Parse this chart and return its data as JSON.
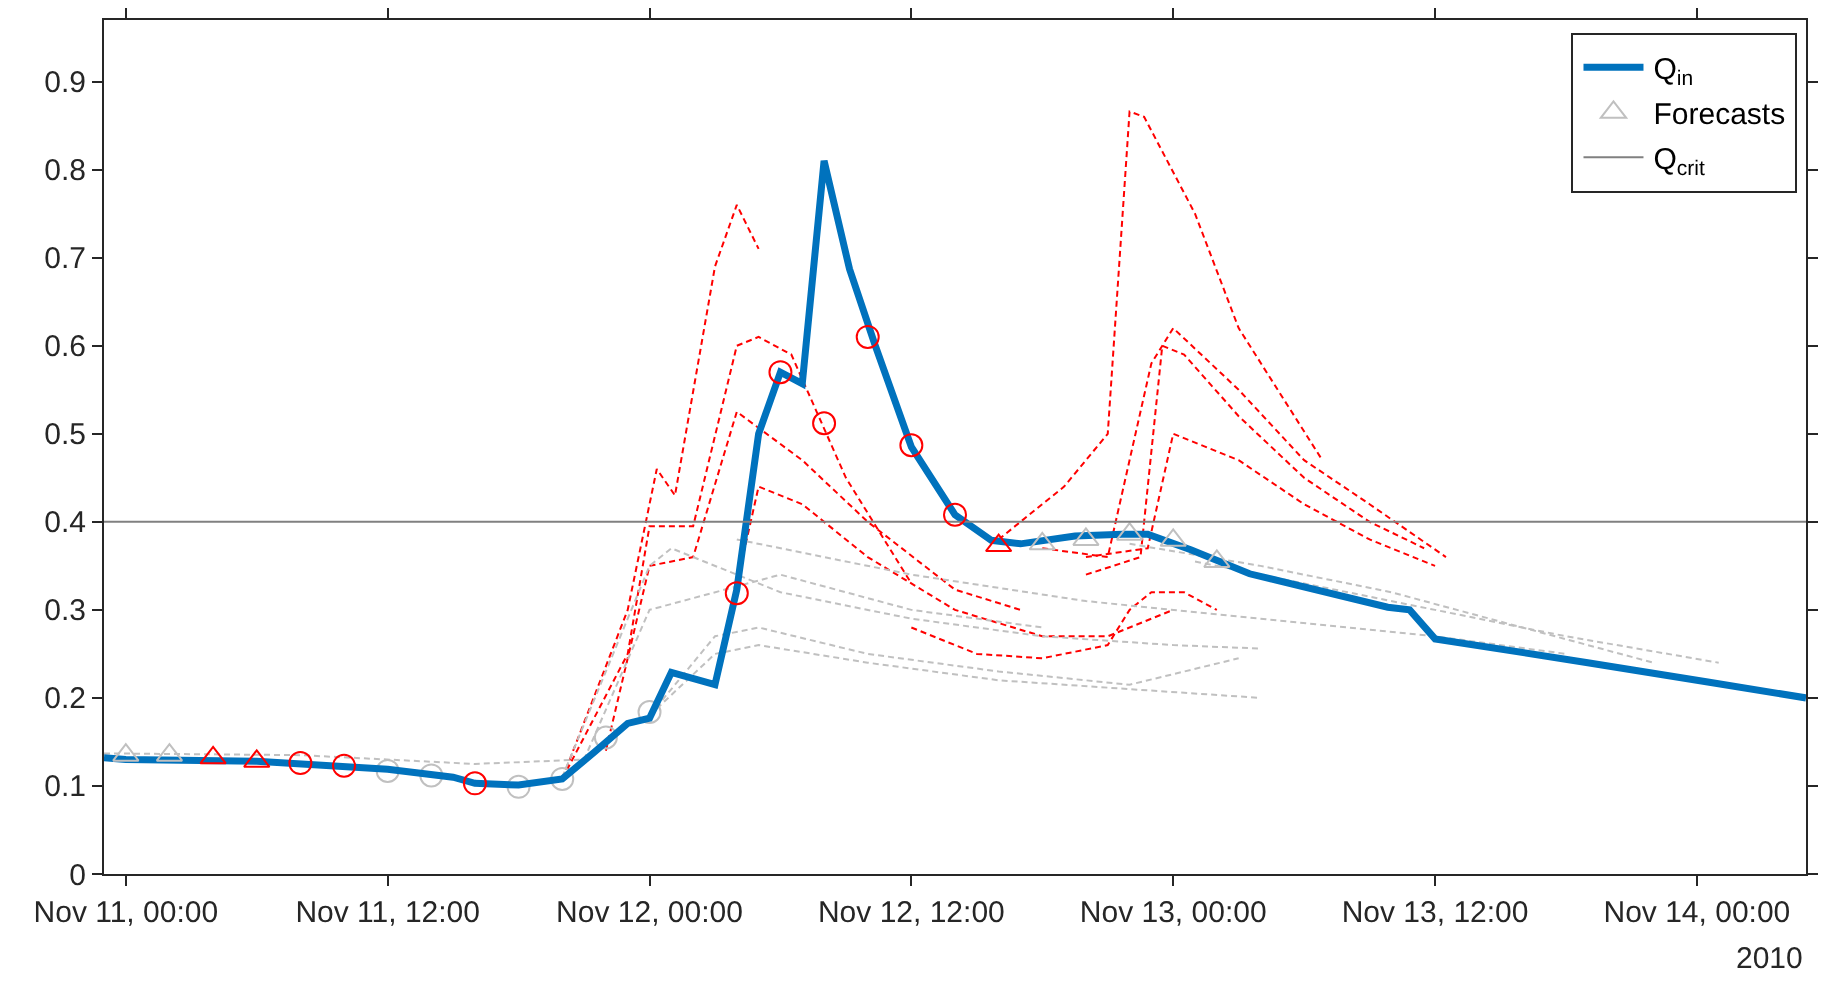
{
  "chart_data": {
    "type": "line",
    "xlim": [
      "2010-11-10T23:00",
      "2010-11-14T05:00"
    ],
    "ylim": [
      0,
      0.97
    ],
    "yticks": [
      0,
      0.1,
      0.2,
      0.3,
      0.4,
      0.5,
      0.6,
      0.7,
      0.8,
      0.9
    ],
    "xticks": [
      {
        "value": "2010-11-11T00:00",
        "label": "Nov 11, 00:00"
      },
      {
        "value": "2010-11-11T12:00",
        "label": "Nov 11, 12:00"
      },
      {
        "value": "2010-11-12T00:00",
        "label": "Nov 12, 00:00"
      },
      {
        "value": "2010-11-12T12:00",
        "label": "Nov 12, 12:00"
      },
      {
        "value": "2010-11-13T00:00",
        "label": "Nov 13, 00:00"
      },
      {
        "value": "2010-11-13T12:00",
        "label": "Nov 13, 12:00"
      },
      {
        "value": "2010-11-14T00:00",
        "label": "Nov 14, 00:00"
      }
    ],
    "annotations": [
      "2010"
    ],
    "legend": "top right",
    "series": [
      {
        "color": "#ff0000",
        "line_style": "dashed",
        "x": [
          "2010-11-11T20:00",
          "2010-11-11T23:00",
          "2010-11-12T00:20",
          "2010-11-12T01:10",
          "2010-11-12T03:00",
          "2010-11-12T04:00",
          "2010-11-12T05:00"
        ],
        "values": [
          0.108,
          0.3,
          0.46,
          0.43,
          0.69,
          0.76,
          0.71
        ]
      },
      {
        "color": "#ff0000",
        "line_style": "dashed",
        "x": [
          "2010-11-11T20:00",
          "2010-11-11T23:00",
          "2010-11-12T00:00",
          "2010-11-12T02:00",
          "2010-11-12T04:00",
          "2010-11-12T05:00",
          "2010-11-12T06:30",
          "2010-11-12T09:00",
          "2010-11-12T12:00"
        ],
        "values": [
          0.108,
          0.25,
          0.395,
          0.395,
          0.6,
          0.61,
          0.59,
          0.45,
          0.33
        ]
      },
      {
        "color": "#ff0000",
        "line_style": "dashed",
        "x": [
          "2010-11-11T22:00",
          "2010-11-12T00:00",
          "2010-11-12T02:00",
          "2010-11-12T04:00",
          "2010-11-12T07:00",
          "2010-11-12T10:00",
          "2010-11-12T14:00",
          "2010-11-12T17:00"
        ],
        "values": [
          0.14,
          0.35,
          0.36,
          0.525,
          0.47,
          0.4,
          0.323,
          0.3
        ]
      },
      {
        "color": "#ff0000",
        "line_style": "dashed",
        "x": [
          "2010-11-12T04:00",
          "2010-11-12T05:00",
          "2010-11-12T07:00",
          "2010-11-12T10:00",
          "2010-11-12T14:00",
          "2010-11-12T18:00",
          "2010-11-12T21:00",
          "2010-11-13T00:00"
        ],
        "values": [
          0.33,
          0.44,
          0.42,
          0.36,
          0.3,
          0.27,
          0.27,
          0.3
        ]
      },
      {
        "color": "#ff0000",
        "line_style": "dashed",
        "x": [
          "2010-11-12T12:00",
          "2010-11-12T15:00",
          "2010-11-12T18:00",
          "2010-11-12T21:00",
          "2010-11-12T22:00",
          "2010-11-12T23:00",
          "2010-11-13T00:30",
          "2010-11-13T02:00"
        ],
        "values": [
          0.28,
          0.25,
          0.245,
          0.26,
          0.3,
          0.32,
          0.32,
          0.3
        ]
      },
      {
        "color": "#ff0000",
        "line_style": "dashed",
        "x": [
          "2010-11-12T16:00",
          "2010-11-12T19:00",
          "2010-11-12T21:00",
          "2010-11-12T22:00",
          "2010-11-12T22:40",
          "2010-11-13T01:00",
          "2010-11-13T03:00",
          "2010-11-13T06:50"
        ],
        "values": [
          0.38,
          0.44,
          0.5,
          0.866,
          0.86,
          0.75,
          0.62,
          0.47
        ]
      },
      {
        "color": "#ff0000",
        "line_style": "dashed",
        "x": [
          "2010-11-12T18:00",
          "2010-11-12T21:00",
          "2010-11-12T23:00",
          "2010-11-13T00:00",
          "2010-11-13T03:00",
          "2010-11-13T06:00",
          "2010-11-13T09:00",
          "2010-11-13T12:30"
        ],
        "values": [
          0.37,
          0.36,
          0.58,
          0.62,
          0.55,
          0.47,
          0.42,
          0.36
        ]
      },
      {
        "color": "#ff0000",
        "line_style": "dashed",
        "x": [
          "2010-11-12T20:00",
          "2010-11-12T22:30",
          "2010-11-12T23:30",
          "2010-11-13T00:30",
          "2010-11-13T03:00",
          "2010-11-13T06:00",
          "2010-11-13T09:00",
          "2010-11-13T11:30"
        ],
        "values": [
          0.34,
          0.36,
          0.6,
          0.59,
          0.52,
          0.45,
          0.4,
          0.37
        ]
      },
      {
        "color": "#ff0000",
        "line_style": "dashed",
        "x": [
          "2010-11-12T20:00",
          "2010-11-12T22:50",
          "2010-11-13T00:00",
          "2010-11-13T03:00",
          "2010-11-13T06:00",
          "2010-11-13T09:00",
          "2010-11-13T12:00"
        ],
        "values": [
          0.36,
          0.37,
          0.5,
          0.47,
          0.42,
          0.38,
          0.35
        ]
      },
      {
        "color": "#c0c0c0",
        "line_style": "dashed",
        "x": [
          "2010-11-10T23:00",
          "2010-11-11T08:00",
          "2010-11-11T16:00",
          "2010-11-11T21:00",
          "2010-11-12T00:00",
          "2010-11-12T06:00",
          "2010-11-12T12:00",
          "2010-11-12T18:00"
        ],
        "values": [
          0.137,
          0.135,
          0.125,
          0.13,
          0.3,
          0.34,
          0.3,
          0.28
        ]
      },
      {
        "color": "#c0c0c0",
        "line_style": "dashed",
        "x": [
          "2010-11-11T20:00",
          "2010-11-12T00:00",
          "2010-11-12T01:00",
          "2010-11-12T06:00",
          "2010-11-12T12:00",
          "2010-11-12T18:00",
          "2010-11-13T00:00",
          "2010-11-13T04:00"
        ],
        "values": [
          0.11,
          0.35,
          0.37,
          0.32,
          0.29,
          0.27,
          0.26,
          0.256
        ]
      },
      {
        "color": "#c0c0c0",
        "line_style": "dashed",
        "x": [
          "2010-11-12T00:00",
          "2010-11-12T03:00",
          "2010-11-12T05:00",
          "2010-11-12T10:00",
          "2010-11-12T16:00",
          "2010-11-12T22:00",
          "2010-11-13T04:00"
        ],
        "values": [
          0.18,
          0.25,
          0.26,
          0.24,
          0.22,
          0.21,
          0.2
        ]
      },
      {
        "color": "#c0c0c0",
        "line_style": "dashed",
        "x": [
          "2010-11-12T00:00",
          "2010-11-12T03:00",
          "2010-11-12T05:00",
          "2010-11-12T10:00",
          "2010-11-12T16:00",
          "2010-11-12T22:00",
          "2010-11-13T03:00"
        ],
        "values": [
          0.18,
          0.27,
          0.28,
          0.25,
          0.23,
          0.215,
          0.245
        ]
      },
      {
        "color": "#c0c0c0",
        "line_style": "dashed",
        "x": [
          "2010-11-12T04:00",
          "2010-11-12T12:00",
          "2010-11-12T20:00",
          "2010-11-13T04:00",
          "2010-11-13T12:00",
          "2010-11-13T18:00"
        ],
        "values": [
          0.38,
          0.34,
          0.31,
          0.29,
          0.27,
          0.25
        ]
      },
      {
        "color": "#c0c0c0",
        "line_style": "dashed",
        "x": [
          "2010-11-12T22:00",
          "2010-11-13T04:00",
          "2010-11-13T10:00",
          "2010-11-13T16:00",
          "2010-11-13T22:00"
        ],
        "values": [
          0.375,
          0.35,
          0.32,
          0.28,
          0.24
        ]
      },
      {
        "color": "#c0c0c0",
        "line_style": "dashed",
        "x": [
          "2010-11-13T01:00",
          "2010-11-13T06:00",
          "2010-11-13T12:00",
          "2010-11-13T18:00",
          "2010-11-14T01:00"
        ],
        "values": [
          0.355,
          0.33,
          0.3,
          0.27,
          0.24
        ]
      },
      {
        "type": "scatter",
        "color": "#c0c0c0",
        "marker": "circle",
        "x": [
          "2010-11-11T12:00",
          "2010-11-11T14:00",
          "2010-11-11T18:00",
          "2010-11-11T20:00",
          "2010-11-11T22:00",
          "2010-11-12T00:00"
        ],
        "values": [
          0.117,
          0.112,
          0.099,
          0.108,
          0.155,
          0.184
        ]
      },
      {
        "name": "Q$_{in}$",
        "color": "#0072bd",
        "x": [
          "2010-11-10T23:00",
          "2010-11-11T00:00",
          "2010-11-11T06:00",
          "2010-11-11T12:00",
          "2010-11-11T15:00",
          "2010-11-11T16:00",
          "2010-11-11T18:00",
          "2010-11-11T20:00",
          "2010-11-11T21:30",
          "2010-11-11T23:00",
          "2010-11-12T00:00",
          "2010-11-12T01:00",
          "2010-11-12T03:00",
          "2010-11-12T04:00",
          "2010-11-12T05:00",
          "2010-11-12T06:00",
          "2010-11-12T07:00",
          "2010-11-12T08:00",
          "2010-11-12T09:10",
          "2010-11-12T10:20",
          "2010-11-12T12:00",
          "2010-11-12T14:00",
          "2010-11-12T15:40",
          "2010-11-12T17:00",
          "2010-11-12T19:30",
          "2010-11-12T21:40",
          "2010-11-12T22:50",
          "2010-11-13T00:50",
          "2010-11-13T03:30",
          "2010-11-13T09:50",
          "2010-11-13T10:50",
          "2010-11-13T12:00",
          "2010-11-13T19:00",
          "2010-11-14T00:30",
          "2010-11-14T05:00"
        ],
        "values": [
          0.132,
          0.13,
          0.128,
          0.119,
          0.11,
          0.103,
          0.101,
          0.108,
          0.139,
          0.171,
          0.177,
          0.229,
          0.215,
          0.323,
          0.5,
          0.57,
          0.557,
          0.81,
          0.687,
          0.601,
          0.485,
          0.408,
          0.379,
          0.375,
          0.384,
          0.386,
          0.386,
          0.368,
          0.341,
          0.303,
          0.3,
          0.267,
          0.24,
          0.218,
          0.2
        ]
      },
      {
        "type": "scatter",
        "name": "Forecasts",
        "color": "#c0c0c0",
        "marker": "triangle",
        "x": [
          "2010-11-11T00:00",
          "2010-11-11T02:00",
          "2010-11-12T18:00",
          "2010-11-12T20:00",
          "2010-11-12T22:00",
          "2010-11-13T00:00",
          "2010-11-13T02:00"
        ],
        "values": [
          0.135,
          0.135,
          0.375,
          0.38,
          0.386,
          0.379,
          0.355
        ]
      },
      {
        "name": "Q$_{crit}$",
        "color": "#808080",
        "x": [
          "2010-11-10T23:00",
          "2010-11-14T05:00"
        ],
        "values": [
          0.4,
          0.4
        ]
      },
      {
        "type": "scatter",
        "color": "#ff0000",
        "marker": "circle",
        "x": [
          "2010-11-11T08:00",
          "2010-11-11T10:00",
          "2010-11-11T16:00",
          "2010-11-12T04:00",
          "2010-11-12T06:00",
          "2010-11-12T08:00",
          "2010-11-12T10:00",
          "2010-11-12T12:00",
          "2010-11-12T14:00"
        ],
        "values": [
          0.126,
          0.123,
          0.103,
          0.319,
          0.57,
          0.512,
          0.61,
          0.487,
          0.408
        ]
      },
      {
        "type": "scatter",
        "color": "#ff0000",
        "marker": "triangle",
        "x": [
          "2010-11-11T04:00",
          "2010-11-11T06:00",
          "2010-11-12T16:00"
        ],
        "values": [
          0.132,
          0.128,
          0.373
        ]
      }
    ]
  }
}
